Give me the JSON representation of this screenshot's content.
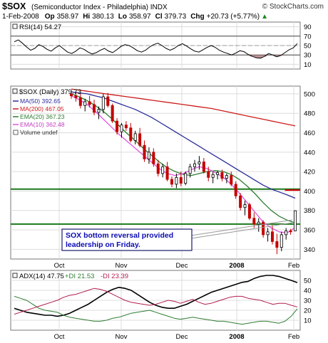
{
  "header": {
    "symbol": "$SOX",
    "name": "(Semiconductor Index - Philadelphia)",
    "exchange": "INDX",
    "watermark": "© StockCharts.com",
    "date": "1-Feb-2008",
    "op_label": "Op",
    "op": "358.97",
    "hi_label": "Hi",
    "hi": "380.13",
    "lo_label": "Lo",
    "lo": "358.97",
    "cl_label": "Cl",
    "cl": "379.73",
    "chg_label": "Chg",
    "chg": "+20.73 (+5.77%)",
    "chg_arrow": "▲"
  },
  "colors": {
    "price_up": "#000000",
    "price_down": "#c40000",
    "ma50": "#2b2b9a",
    "ma200": "#cc1b1b",
    "ema20": "#2e7d32",
    "ema10": "#e056e0",
    "hline_green": "#1b7a1b",
    "hline_red": "#d40000",
    "rsi_line": "#000000",
    "rsi_fill": "#a87070",
    "adx": "#000000",
    "plus_di": "#2e7d32",
    "minus_di": "#b21e4b",
    "callout_border": "#1a1a6e",
    "callout_text": "#0a0ab4"
  },
  "chart_data": [
    {
      "type": "line",
      "panel": "rsi",
      "legend": "RSI(14) 54.27",
      "y_ticks": [
        10,
        30,
        50,
        70,
        90
      ],
      "ylim": [
        0,
        100
      ],
      "reference_lines": [
        30,
        70
      ],
      "series": [
        {
          "name": "RSI(14)",
          "values": [
            58,
            62,
            55,
            47,
            40,
            44,
            52,
            48,
            42,
            38,
            45,
            50,
            43,
            36,
            33,
            38,
            45,
            42,
            36,
            32,
            35,
            40,
            44,
            38,
            35,
            41,
            48,
            52,
            50,
            45,
            39,
            36,
            40,
            47,
            52,
            55,
            50,
            44,
            40,
            44,
            50,
            54,
            49,
            43,
            38,
            36,
            41,
            46,
            50,
            46,
            40,
            36,
            33,
            30,
            34,
            39,
            37,
            31,
            27,
            24,
            23,
            27,
            33,
            30,
            26,
            29,
            35,
            41,
            45,
            54.27
          ]
        }
      ]
    },
    {
      "type": "candlestick",
      "panel": "price",
      "legend": [
        "$SOX (Daily) 379.73",
        "MA(50) 392.65",
        "MA(200) 467.05",
        "EMA(20) 367.23",
        "EMA(10) 362.48",
        "Volume undef"
      ],
      "y_ticks": [
        340,
        360,
        380,
        400,
        420,
        440,
        460,
        480,
        500
      ],
      "ylim": [
        330,
        508
      ],
      "x_labels": [
        "Oct",
        "Nov",
        "Dec",
        "2008",
        "Feb"
      ],
      "horizontal_lines": [
        {
          "value": 402,
          "color": "green"
        },
        {
          "value": 366,
          "color": "green"
        },
        {
          "value": 401,
          "color": "red",
          "from_index": 68
        }
      ],
      "candles": [
        [
          500,
          504,
          495,
          498
        ],
        [
          498,
          503,
          492,
          496
        ],
        [
          496,
          500,
          485,
          488
        ],
        [
          488,
          495,
          482,
          492
        ],
        [
          492,
          498,
          486,
          489
        ],
        [
          489,
          494,
          478,
          481
        ],
        [
          481,
          487,
          474,
          484
        ],
        [
          484,
          500,
          480,
          497
        ],
        [
          497,
          501,
          486,
          488
        ],
        [
          488,
          490,
          470,
          472
        ],
        [
          472,
          475,
          458,
          461
        ],
        [
          461,
          470,
          455,
          468
        ],
        [
          468,
          472,
          462,
          465
        ],
        [
          465,
          470,
          450,
          452
        ],
        [
          452,
          462,
          448,
          459
        ],
        [
          459,
          465,
          445,
          447
        ],
        [
          447,
          452,
          430,
          433
        ],
        [
          433,
          445,
          428,
          440
        ],
        [
          440,
          444,
          425,
          428
        ],
        [
          428,
          432,
          415,
          418
        ],
        [
          418,
          428,
          414,
          425
        ],
        [
          425,
          430,
          410,
          412
        ],
        [
          412,
          415,
          404,
          407
        ],
        [
          407,
          418,
          403,
          414
        ],
        [
          414,
          420,
          405,
          408
        ],
        [
          408,
          420,
          406,
          418
        ],
        [
          418,
          428,
          414,
          425
        ],
        [
          425,
          432,
          420,
          428
        ],
        [
          428,
          436,
          422,
          430
        ],
        [
          430,
          434,
          418,
          420
        ],
        [
          420,
          425,
          410,
          414
        ],
        [
          414,
          420,
          408,
          417
        ],
        [
          417,
          421,
          412,
          419
        ],
        [
          419,
          422,
          410,
          413
        ],
        [
          413,
          418,
          408,
          416
        ],
        [
          416,
          420,
          405,
          407
        ],
        [
          407,
          410,
          392,
          395
        ],
        [
          395,
          398,
          380,
          383
        ],
        [
          383,
          390,
          375,
          386
        ],
        [
          386,
          388,
          370,
          372
        ],
        [
          372,
          378,
          362,
          366
        ],
        [
          366,
          372,
          358,
          368
        ],
        [
          368,
          370,
          352,
          355
        ],
        [
          355,
          362,
          348,
          358
        ],
        [
          358,
          365,
          345,
          348
        ],
        [
          348,
          356,
          335,
          342
        ],
        [
          342,
          358,
          338,
          355
        ],
        [
          355,
          362,
          350,
          359
        ],
        [
          359,
          361,
          355,
          358
        ],
        [
          358.97,
          380.13,
          358.97,
          379.73
        ]
      ],
      "series": [
        {
          "name": "MA(50)",
          "values": [
            502,
            501,
            500,
            498,
            496,
            493,
            490,
            487,
            484,
            480,
            476,
            471,
            466,
            461,
            456,
            451,
            446,
            441,
            436,
            431,
            426,
            421,
            416,
            411,
            406,
            402,
            399,
            396,
            392.65
          ]
        },
        {
          "name": "MA(200)",
          "values": [
            505,
            503,
            501,
            499,
            497,
            495,
            493,
            491,
            489,
            487,
            485,
            482,
            479,
            476,
            473,
            470,
            467.05
          ]
        },
        {
          "name": "EMA(20)",
          "values": [
            500,
            497,
            493,
            488,
            482,
            475,
            467,
            459,
            452,
            444,
            437,
            430,
            424,
            420,
            417,
            416,
            418,
            420,
            421,
            420,
            417,
            412,
            405,
            397,
            388,
            380,
            374,
            370,
            367.23
          ]
        },
        {
          "name": "EMA(10)",
          "values": [
            498,
            494,
            489,
            482,
            474,
            466,
            458,
            451,
            444,
            437,
            430,
            423,
            418,
            416,
            418,
            422,
            425,
            423,
            419,
            414,
            407,
            398,
            388,
            378,
            368,
            362,
            358,
            357,
            362.48
          ]
        }
      ],
      "annotation": "SOX bottom reversal provided leadership on Friday."
    },
    {
      "type": "line",
      "panel": "adx",
      "legend": [
        "ADX(14) 47.75",
        "+DI 21.53",
        "-DI 23.39"
      ],
      "y_ticks": [
        10,
        20,
        30,
        40,
        50
      ],
      "ylim": [
        0,
        60
      ],
      "x_labels": [
        "Oct",
        "Nov",
        "Dec",
        "2008",
        "Feb"
      ],
      "series": [
        {
          "name": "ADX(14)",
          "values": [
            22,
            20,
            18,
            17,
            16,
            15,
            15,
            14,
            15,
            17,
            20,
            23,
            26,
            30,
            34,
            38,
            41,
            43,
            42,
            40,
            36,
            32,
            28,
            25,
            23,
            22,
            22,
            24,
            26,
            29,
            32,
            35,
            38,
            40,
            42,
            44,
            46,
            48,
            49,
            52,
            54,
            55,
            55,
            54,
            52,
            50,
            47.75
          ]
        },
        {
          "name": "+DI",
          "values": [
            34,
            32,
            30,
            26,
            22,
            20,
            19,
            18,
            15,
            13,
            12,
            11,
            10,
            9,
            9,
            10,
            12,
            13,
            15,
            17,
            18,
            19,
            20,
            18,
            16,
            14,
            12,
            11,
            12,
            13,
            12,
            11,
            10,
            9,
            9,
            8,
            7,
            6,
            7,
            8,
            9,
            9,
            8,
            7,
            9,
            14,
            21.53
          ]
        },
        {
          "name": "-DI",
          "values": [
            16,
            18,
            20,
            22,
            24,
            26,
            28,
            30,
            33,
            35,
            36,
            38,
            40,
            42,
            41,
            39,
            36,
            33,
            30,
            28,
            27,
            26,
            25,
            26,
            28,
            30,
            29,
            27,
            29,
            31,
            28,
            26,
            27,
            29,
            31,
            33,
            34,
            34,
            32,
            31,
            30,
            28,
            26,
            27,
            27,
            25,
            23.39
          ]
        }
      ]
    }
  ]
}
